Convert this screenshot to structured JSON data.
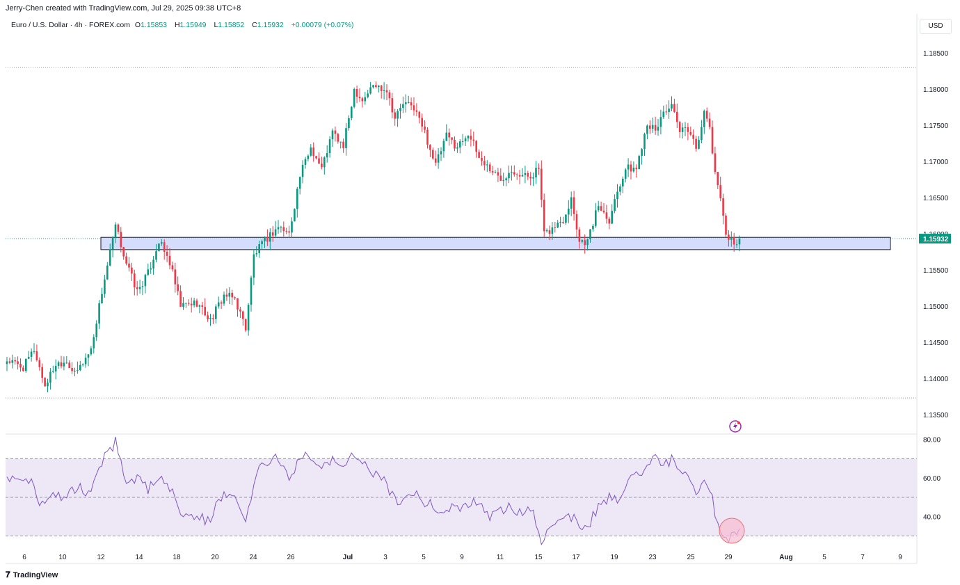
{
  "header": {
    "attribution": "Jerry-Chen created with TradingView.com, Jul 29, 2025 09:38 UTC+8"
  },
  "symbol": {
    "name": "Euro / U.S. Dollar · 4h · FOREX.com",
    "open_label": "O",
    "open": "1.15853",
    "high_label": "H",
    "high": "1.15949",
    "low_label": "L",
    "low": "1.15852",
    "close_label": "C",
    "close": "1.15932",
    "change": "+0.00079 (+0.07%)"
  },
  "currency_button": "USD",
  "footer": {
    "logo_text": "TradingView"
  },
  "colors": {
    "up": "#089981",
    "down": "#f23645",
    "zone_fill": "#c5d3fb",
    "rsi_line": "#7e57c2",
    "rsi_band": "#ede7f6",
    "price_label_bg": "#089981"
  },
  "icons": {
    "footer": "tradingview-logo-icon",
    "marker": "lightning-icon"
  },
  "chart_data": [
    {
      "type": "candlestick",
      "title": "",
      "ylim": [
        1.1325,
        1.1875
      ],
      "y_ticks": [
        "1.18500",
        "1.18000",
        "1.17500",
        "1.17000",
        "1.16500",
        "1.16000",
        "1.15500",
        "1.15000",
        "1.14500",
        "1.14000",
        "1.13500"
      ],
      "x_ticks": [
        "6",
        "10",
        "12",
        "14",
        "18",
        "20",
        "24",
        "26",
        "Jul",
        "3",
        "5",
        "9",
        "11",
        "15",
        "17",
        "19",
        "23",
        "25",
        "29",
        "Aug",
        "5",
        "7",
        "9"
      ],
      "current_price_label": "1.15932",
      "support_zone": {
        "from": 1.1578,
        "to": 1.1595
      },
      "dotted_levels": [
        1.183,
        1.1373
      ],
      "anchors": [
        [
          0,
          1.1425
        ],
        [
          6,
          1.1415
        ],
        [
          10,
          1.144
        ],
        [
          14,
          1.139
        ],
        [
          18,
          1.142
        ],
        [
          22,
          1.1425
        ],
        [
          25,
          1.1405
        ],
        [
          31,
          1.144
        ],
        [
          35,
          1.152
        ],
        [
          40,
          1.161
        ],
        [
          44,
          1.156
        ],
        [
          48,
          1.152
        ],
        [
          52,
          1.1545
        ],
        [
          56,
          1.159
        ],
        [
          60,
          1.156
        ],
        [
          64,
          1.15
        ],
        [
          70,
          1.1505
        ],
        [
          75,
          1.148
        ],
        [
          80,
          1.1515
        ],
        [
          84,
          1.151
        ],
        [
          88,
          1.147
        ],
        [
          91,
          1.157
        ],
        [
          95,
          1.159
        ],
        [
          100,
          1.161
        ],
        [
          104,
          1.16
        ],
        [
          108,
          1.168
        ],
        [
          112,
          1.172
        ],
        [
          116,
          1.169
        ],
        [
          120,
          1.174
        ],
        [
          124,
          1.172
        ],
        [
          128,
          1.18
        ],
        [
          131,
          1.1785
        ],
        [
          135,
          1.1805
        ],
        [
          140,
          1.18
        ],
        [
          143,
          1.176
        ],
        [
          146,
          1.178
        ],
        [
          150,
          1.1775
        ],
        [
          154,
          1.174
        ],
        [
          158,
          1.1695
        ],
        [
          162,
          1.1735
        ],
        [
          166,
          1.172
        ],
        [
          170,
          1.174
        ],
        [
          174,
          1.1705
        ],
        [
          178,
          1.169
        ],
        [
          182,
          1.1675
        ],
        [
          186,
          1.169
        ],
        [
          190,
          1.168
        ],
        [
          193,
          1.168
        ],
        [
          196,
          1.169
        ],
        [
          198,
          1.1598
        ],
        [
          202,
          1.161
        ],
        [
          205,
          1.162
        ],
        [
          208,
          1.165
        ],
        [
          211,
          1.159
        ],
        [
          214,
          1.159
        ],
        [
          218,
          1.164
        ],
        [
          222,
          1.162
        ],
        [
          225,
          1.166
        ],
        [
          228,
          1.169
        ],
        [
          232,
          1.169
        ],
        [
          236,
          1.1755
        ],
        [
          239,
          1.174
        ],
        [
          242,
          1.177
        ],
        [
          245,
          1.1775
        ],
        [
          248,
          1.174
        ],
        [
          251,
          1.1745
        ],
        [
          254,
          1.172
        ],
        [
          257,
          1.1765
        ],
        [
          259,
          1.1748
        ],
        [
          261,
          1.168
        ],
        [
          263,
          1.1655
        ],
        [
          265,
          1.1598
        ],
        [
          268,
          1.1588
        ],
        [
          270,
          1.1593
        ]
      ],
      "series_note": ""
    },
    {
      "type": "line",
      "name": "",
      "ylim": [
        23,
        82
      ],
      "y_ticks": [
        "80.00",
        "60.00",
        "40.00"
      ],
      "bands": [
        70,
        50,
        30
      ],
      "values_anchors": [
        [
          0,
          59
        ],
        [
          4,
          62
        ],
        [
          8,
          60
        ],
        [
          12,
          47
        ],
        [
          16,
          52
        ],
        [
          22,
          50
        ],
        [
          26,
          55
        ],
        [
          30,
          52
        ],
        [
          35,
          68
        ],
        [
          40,
          79
        ],
        [
          44,
          58
        ],
        [
          48,
          60
        ],
        [
          52,
          54
        ],
        [
          56,
          60
        ],
        [
          61,
          54
        ],
        [
          65,
          40
        ],
        [
          70,
          40
        ],
        [
          75,
          38
        ],
        [
          80,
          54
        ],
        [
          85,
          48
        ],
        [
          88,
          40
        ],
        [
          93,
          66
        ],
        [
          100,
          70
        ],
        [
          104,
          61
        ],
        [
          110,
          74
        ],
        [
          116,
          67
        ],
        [
          120,
          70
        ],
        [
          124,
          64
        ],
        [
          128,
          72
        ],
        [
          133,
          65
        ],
        [
          138,
          60
        ],
        [
          144,
          48
        ],
        [
          150,
          52
        ],
        [
          155,
          47
        ],
        [
          160,
          42
        ],
        [
          166,
          45
        ],
        [
          172,
          48
        ],
        [
          178,
          40
        ],
        [
          182,
          44
        ],
        [
          186,
          45
        ],
        [
          190,
          42
        ],
        [
          194,
          44
        ],
        [
          197,
          27
        ],
        [
          200,
          34
        ],
        [
          205,
          42
        ],
        [
          210,
          38
        ],
        [
          214,
          34
        ],
        [
          218,
          46
        ],
        [
          222,
          50
        ],
        [
          226,
          49
        ],
        [
          230,
          60
        ],
        [
          234,
          64
        ],
        [
          238,
          72
        ],
        [
          242,
          66
        ],
        [
          245,
          70
        ],
        [
          248,
          62
        ],
        [
          251,
          60
        ],
        [
          254,
          53
        ],
        [
          257,
          60
        ],
        [
          259,
          55
        ],
        [
          262,
          36
        ],
        [
          265,
          29
        ],
        [
          268,
          30
        ],
        [
          270,
          31
        ]
      ]
    }
  ]
}
